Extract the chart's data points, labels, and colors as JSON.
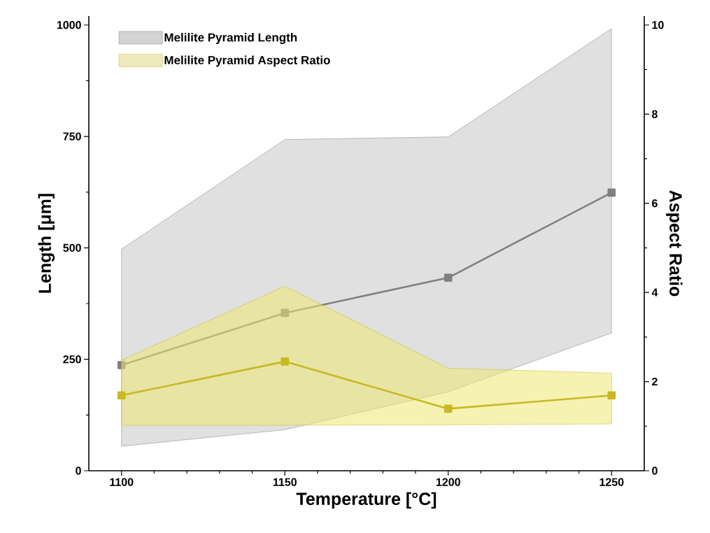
{
  "chart_data": {
    "type": "line",
    "xlabel": "Temperature [°C]",
    "ylabel": "Length [μm]",
    "y2label": "Aspect Ratio",
    "x": [
      1100,
      1150,
      1200,
      1250
    ],
    "xlim": [
      1090,
      1260
    ],
    "xticks": [
      1100,
      1150,
      1200,
      1250
    ],
    "ylim": [
      0,
      1020
    ],
    "yticks": [
      0,
      250,
      500,
      750,
      1000
    ],
    "y2lim": [
      0,
      10.2
    ],
    "y2ticks": [
      0,
      2,
      4,
      6,
      8,
      10
    ],
    "marker": "square",
    "line_style": "solid",
    "grid": false,
    "legend": "top left",
    "series": [
      {
        "name": "Melilite Pyramid Length",
        "color": "#808080",
        "values": [
          237,
          354,
          433,
          624
        ],
        "lower": [
          55,
          92,
          177,
          309
        ],
        "upper": [
          497,
          743,
          749,
          992
        ]
      },
      {
        "name": "Melilite Pyramid Aspect Ratio",
        "color": "#c9b824",
        "axis": "y2",
        "values": [
          1.69,
          2.45,
          1.39,
          1.69
        ],
        "lower": [
          1.02,
          1.02,
          1.03,
          1.05
        ],
        "upper": [
          2.48,
          4.14,
          2.3,
          2.19
        ]
      }
    ]
  }
}
